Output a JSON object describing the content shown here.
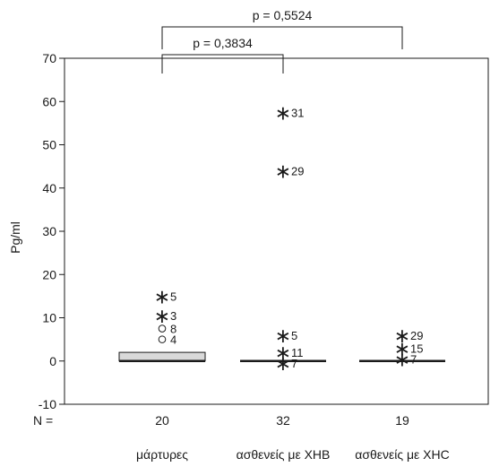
{
  "chart_data": {
    "type": "box",
    "ylabel": "Pg/ml",
    "ylim": [
      -10,
      70
    ],
    "yticks": [
      -10,
      0,
      10,
      20,
      30,
      40,
      50,
      60,
      70
    ],
    "n_label": "N =",
    "groups": [
      {
        "label": "μάρτυρες",
        "n": "20",
        "box": {
          "q1": 0,
          "median": 0,
          "q3": 2,
          "whisker_low": 0,
          "whisker_high": 2
        },
        "outliers": [
          {
            "value": 15,
            "label": "5",
            "marker": "extreme"
          },
          {
            "value": 10.5,
            "label": "3",
            "marker": "extreme"
          },
          {
            "value": 7.5,
            "label": "8",
            "marker": "outlier"
          },
          {
            "value": 5,
            "label": "4",
            "marker": "outlier"
          }
        ]
      },
      {
        "label": "ασθενείς με ΧΗΒ",
        "n": "32",
        "box": {
          "q1": 0,
          "median": 0,
          "q3": 0,
          "whisker_low": 0,
          "whisker_high": 0
        },
        "outliers": [
          {
            "value": 57.5,
            "label": "31",
            "marker": "extreme"
          },
          {
            "value": 44,
            "label": "29",
            "marker": "extreme"
          },
          {
            "value": 6,
            "label": "5",
            "marker": "extreme"
          },
          {
            "value": 2,
            "label": "11",
            "marker": "extreme"
          },
          {
            "value": -0.5,
            "label": "7",
            "marker": "extreme"
          }
        ]
      },
      {
        "label": "ασθενείς με ΧΗC",
        "n": "19",
        "box": {
          "q1": 0,
          "median": 0,
          "q3": 0,
          "whisker_low": 0,
          "whisker_high": 0
        },
        "outliers": [
          {
            "value": 6,
            "label": "29",
            "marker": "extreme"
          },
          {
            "value": 3,
            "label": "15",
            "marker": "extreme"
          },
          {
            "value": 0.5,
            "label": "7",
            "marker": "extreme"
          }
        ]
      }
    ],
    "annotations": [
      {
        "text": "p = 0,3834",
        "from": 0,
        "to": 1,
        "level": 1
      },
      {
        "text": "p = 0,5524",
        "from": 0,
        "to": 2,
        "level": 2
      }
    ]
  }
}
